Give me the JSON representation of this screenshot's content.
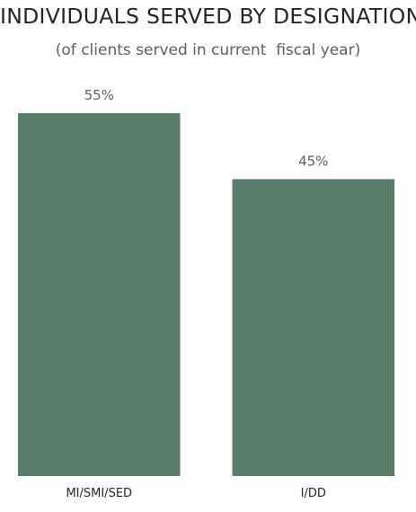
{
  "chart_data": {
    "type": "bar",
    "title": "INDIVIDUALS SERVED BY DESIGNATION",
    "subtitle": "(of clients served in current  fiscal year)",
    "categories": [
      "MI/SMI/SED",
      "I/DD"
    ],
    "values": [
      55,
      45
    ],
    "data_labels": [
      "55%",
      "45%"
    ],
    "xlabel": "",
    "ylabel": "",
    "ylim": [
      0,
      55
    ],
    "grid": false,
    "legend": "none",
    "bar_color": "#5a7d69"
  }
}
